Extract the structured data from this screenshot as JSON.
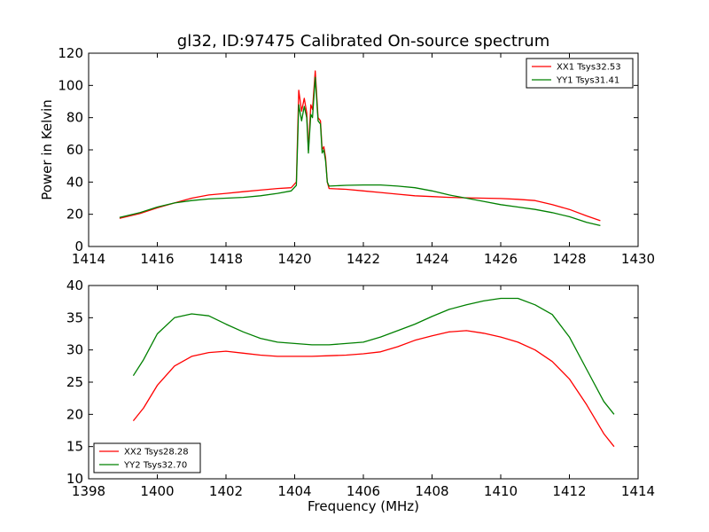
{
  "figure": {
    "title": "gl32, ID:97475 Calibrated On-source spectrum"
  },
  "chart_data": [
    {
      "type": "line",
      "xlabel": "",
      "ylabel": "Power in Kelvin",
      "xlim": [
        1414,
        1430
      ],
      "ylim": [
        0,
        120
      ],
      "xticks": [
        "1414",
        "1416",
        "1418",
        "1420",
        "1422",
        "1424",
        "1426",
        "1428",
        "1430"
      ],
      "yticks": [
        "0",
        "20",
        "40",
        "60",
        "80",
        "100",
        "120"
      ],
      "legend_position": "top-right",
      "series": [
        {
          "name": "XX1 Tsys32.53",
          "color": "#ff0000",
          "points": [
            [
              1414.9,
              17.5
            ],
            [
              1415.5,
              20.5
            ],
            [
              1416,
              24
            ],
            [
              1416.5,
              27
            ],
            [
              1417,
              30
            ],
            [
              1417.5,
              32
            ],
            [
              1418,
              33
            ],
            [
              1418.5,
              34
            ],
            [
              1419,
              35
            ],
            [
              1419.5,
              36
            ],
            [
              1419.9,
              36.5
            ],
            [
              1420.05,
              40
            ],
            [
              1420.12,
              97
            ],
            [
              1420.2,
              84
            ],
            [
              1420.28,
              92
            ],
            [
              1420.35,
              83
            ],
            [
              1420.4,
              60
            ],
            [
              1420.47,
              88
            ],
            [
              1420.52,
              85
            ],
            [
              1420.6,
              109
            ],
            [
              1420.68,
              80
            ],
            [
              1420.75,
              78
            ],
            [
              1420.8,
              60
            ],
            [
              1420.85,
              62
            ],
            [
              1420.9,
              55
            ],
            [
              1420.95,
              40
            ],
            [
              1421,
              36
            ],
            [
              1421.5,
              35.5
            ],
            [
              1422,
              34.5
            ],
            [
              1422.5,
              33.5
            ],
            [
              1423,
              32.5
            ],
            [
              1423.5,
              31.5
            ],
            [
              1424,
              31
            ],
            [
              1424.5,
              30.5
            ],
            [
              1425,
              30.2
            ],
            [
              1425.5,
              30
            ],
            [
              1426,
              29.8
            ],
            [
              1426.5,
              29.3
            ],
            [
              1427,
              28.5
            ],
            [
              1427.5,
              26
            ],
            [
              1428,
              23
            ],
            [
              1428.5,
              19
            ],
            [
              1428.9,
              16
            ]
          ]
        },
        {
          "name": "YY1 Tsys31.41",
          "color": "#008000",
          "points": [
            [
              1414.9,
              18
            ],
            [
              1415.5,
              21
            ],
            [
              1416,
              24.5
            ],
            [
              1416.5,
              27
            ],
            [
              1417,
              28.5
            ],
            [
              1417.5,
              29.5
            ],
            [
              1418,
              30
            ],
            [
              1418.5,
              30.5
            ],
            [
              1419,
              31.5
            ],
            [
              1419.5,
              33
            ],
            [
              1419.9,
              34.5
            ],
            [
              1420.05,
              38
            ],
            [
              1420.12,
              88
            ],
            [
              1420.2,
              78
            ],
            [
              1420.28,
              87
            ],
            [
              1420.35,
              80
            ],
            [
              1420.4,
              58
            ],
            [
              1420.47,
              82
            ],
            [
              1420.52,
              80
            ],
            [
              1420.6,
              105
            ],
            [
              1420.68,
              78
            ],
            [
              1420.75,
              76
            ],
            [
              1420.8,
              58
            ],
            [
              1420.85,
              60
            ],
            [
              1420.9,
              53
            ],
            [
              1420.95,
              40
            ],
            [
              1421,
              37.5
            ],
            [
              1421.5,
              38
            ],
            [
              1422,
              38.2
            ],
            [
              1422.5,
              38.2
            ],
            [
              1423,
              37.5
            ],
            [
              1423.5,
              36.5
            ],
            [
              1424,
              34.5
            ],
            [
              1424.5,
              32
            ],
            [
              1425,
              30
            ],
            [
              1425.5,
              28
            ],
            [
              1426,
              26
            ],
            [
              1426.5,
              24.5
            ],
            [
              1427,
              23
            ],
            [
              1427.5,
              21
            ],
            [
              1428,
              18.5
            ],
            [
              1428.5,
              15
            ],
            [
              1428.9,
              13
            ]
          ]
        }
      ]
    },
    {
      "type": "line",
      "xlabel": "Frequency (MHz)",
      "ylabel": "",
      "xlim": [
        1398,
        1414
      ],
      "ylim": [
        10,
        40
      ],
      "xticks": [
        "1398",
        "1400",
        "1402",
        "1404",
        "1406",
        "1408",
        "1410",
        "1412",
        "1414"
      ],
      "yticks": [
        "10",
        "15",
        "20",
        "25",
        "30",
        "35",
        "40"
      ],
      "legend_position": "bottom-left",
      "series": [
        {
          "name": "XX2 Tsys28.28",
          "color": "#ff0000",
          "points": [
            [
              1399.3,
              19
            ],
            [
              1399.6,
              21
            ],
            [
              1400,
              24.5
            ],
            [
              1400.5,
              27.5
            ],
            [
              1401,
              29
            ],
            [
              1401.5,
              29.6
            ],
            [
              1402,
              29.8
            ],
            [
              1402.5,
              29.5
            ],
            [
              1403,
              29.2
            ],
            [
              1403.5,
              29
            ],
            [
              1404,
              29
            ],
            [
              1404.5,
              29
            ],
            [
              1405,
              29.1
            ],
            [
              1405.5,
              29.2
            ],
            [
              1406,
              29.4
            ],
            [
              1406.5,
              29.7
            ],
            [
              1407,
              30.5
            ],
            [
              1407.5,
              31.5
            ],
            [
              1408,
              32.2
            ],
            [
              1408.5,
              32.8
            ],
            [
              1409,
              33
            ],
            [
              1409.5,
              32.6
            ],
            [
              1410,
              32
            ],
            [
              1410.5,
              31.2
            ],
            [
              1411,
              30
            ],
            [
              1411.5,
              28.2
            ],
            [
              1412,
              25.5
            ],
            [
              1412.5,
              21.5
            ],
            [
              1413,
              17
            ],
            [
              1413.3,
              15
            ]
          ]
        },
        {
          "name": "YY2 Tsys32.70",
          "color": "#008000",
          "points": [
            [
              1399.3,
              26
            ],
            [
              1399.6,
              28.5
            ],
            [
              1400,
              32.5
            ],
            [
              1400.5,
              35
            ],
            [
              1401,
              35.6
            ],
            [
              1401.5,
              35.3
            ],
            [
              1402,
              34
            ],
            [
              1402.5,
              32.8
            ],
            [
              1403,
              31.8
            ],
            [
              1403.5,
              31.2
            ],
            [
              1404,
              31
            ],
            [
              1404.5,
              30.8
            ],
            [
              1405,
              30.8
            ],
            [
              1405.5,
              31
            ],
            [
              1406,
              31.2
            ],
            [
              1406.5,
              32
            ],
            [
              1407,
              33
            ],
            [
              1407.5,
              34
            ],
            [
              1408,
              35.2
            ],
            [
              1408.5,
              36.3
            ],
            [
              1409,
              37
            ],
            [
              1409.5,
              37.6
            ],
            [
              1410,
              38
            ],
            [
              1410.5,
              38
            ],
            [
              1411,
              37
            ],
            [
              1411.5,
              35.5
            ],
            [
              1412,
              32
            ],
            [
              1412.5,
              27
            ],
            [
              1413,
              22
            ],
            [
              1413.3,
              20
            ]
          ]
        }
      ]
    }
  ]
}
